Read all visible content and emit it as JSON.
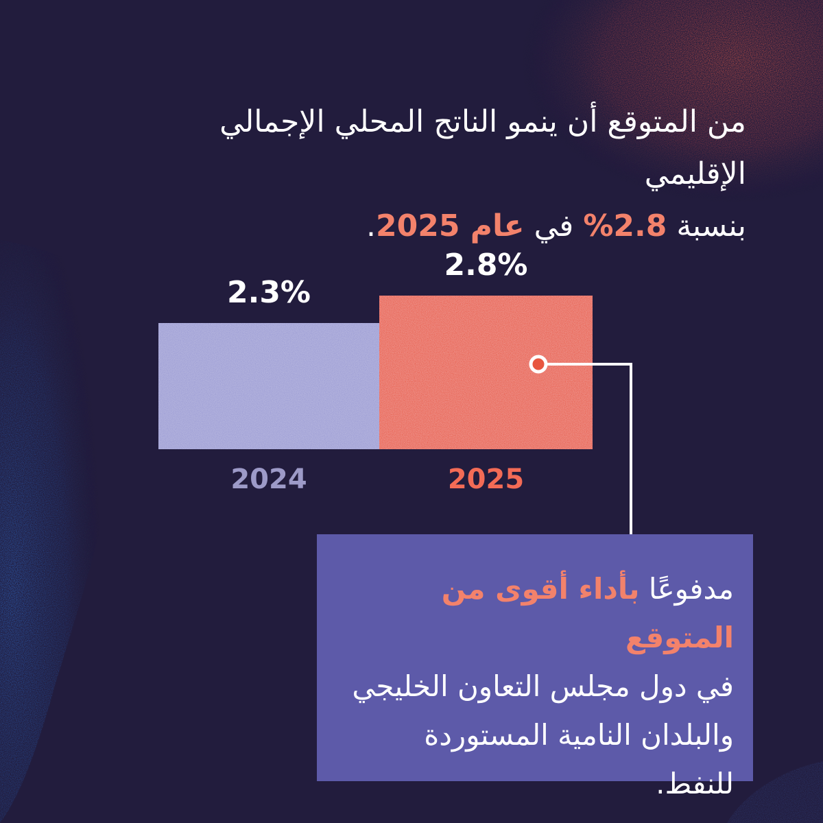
{
  "headline": {
    "line1": "من المتوقع أن ينمو الناتج المحلي الإجمالي الإقليمي",
    "line2_pre": "بنسبة ",
    "line2_pct": "2.8%",
    "line2_mid": " في ",
    "line2_year": "عام 2025",
    "line2_end": "."
  },
  "colors": {
    "background": "#221c3d",
    "bar_2024": "#9a9ad4",
    "bar_2025": "#e8563f",
    "label_2024": "#9d9ac8",
    "label_2025": "#f36b56",
    "highlight": "#f3826b",
    "callout_box": "#5d5aa9"
  },
  "chart_data": {
    "type": "bar",
    "categories": [
      "2024",
      "2025"
    ],
    "values": [
      2.3,
      2.8
    ],
    "value_labels": [
      "2.3%",
      "2.8%"
    ],
    "unit": "%",
    "title": "",
    "xlabel": "",
    "ylabel": "",
    "grid": false,
    "legend": "none"
  },
  "callout": {
    "line1_pre": "مدفوعًا ",
    "line1_hl": "بأداء أقوى من المتوقع",
    "line2": "في دول مجلس التعاون الخليجي",
    "line3": "والبلدان النامية المستوردة",
    "line4": "للنفط."
  }
}
